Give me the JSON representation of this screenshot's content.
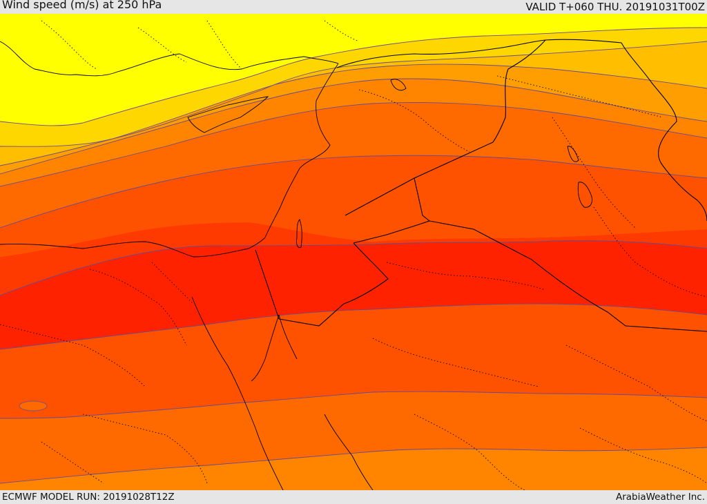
{
  "header": {
    "title": "Wind speed (m/s) at 250 hPa",
    "valid": "VALID T+060 THU. 20191031T00Z"
  },
  "footer": {
    "model_run": "ECMWF MODEL RUN: 20191028T12Z",
    "credit": "ArabiaWeather Inc."
  },
  "colors": {
    "band_1": "#ffff00",
    "band_2": "#ffd700",
    "band_3": "#ffbf00",
    "band_4": "#ff9e00",
    "band_5": "#ff8400",
    "band_6": "#ff6a00",
    "band_7": "#ff5200",
    "band_8": "#ff3a00",
    "band_9": "#ff2200",
    "contour": "#6a4a8a",
    "border": "#000000"
  }
}
